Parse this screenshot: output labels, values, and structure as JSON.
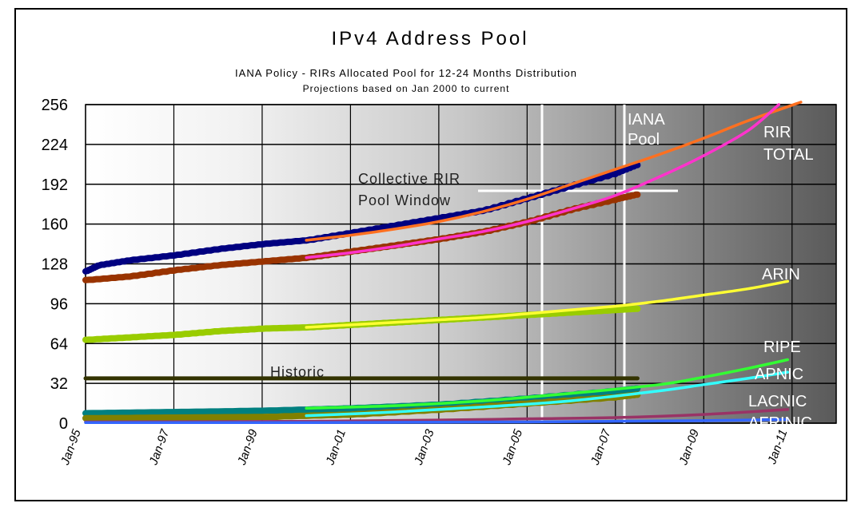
{
  "chart_data": {
    "type": "line",
    "title": "IPv4 Address Pool",
    "subtitle_line1": "IANA Policy - RIRs Allocated Pool for 12-24 Months Distribution",
    "subtitle_line2": "Projections based on Jan 2000 to current",
    "x_ticks": [
      "Jan-95",
      "Jan-97",
      "Jan-99",
      "Jan-01",
      "Jan-03",
      "Jan-05",
      "Jan-07",
      "Jan-09",
      "Jan-11"
    ],
    "y_ticks": [
      256,
      224,
      192,
      160,
      128,
      96,
      64,
      32,
      0
    ],
    "ylim": [
      0,
      256
    ],
    "xlim": [
      1995.0,
      2012.0
    ],
    "grid": true,
    "annotations": {
      "iana_pool": [
        "IANA",
        "Pool"
      ],
      "collective_window": [
        "Collective RIR",
        "Pool Window"
      ],
      "historic": "Historic"
    },
    "series": [
      {
        "name": "IANA Pool",
        "color": "#000080",
        "style": "actual",
        "points": [
          [
            1995.0,
            122
          ],
          [
            1995.3,
            127
          ],
          [
            1996.0,
            131
          ],
          [
            1997.0,
            135
          ],
          [
            1998.0,
            140
          ],
          [
            1999.0,
            144
          ],
          [
            2000.0,
            147
          ],
          [
            2001.0,
            153
          ],
          [
            2002.0,
            159
          ],
          [
            2003.0,
            165
          ],
          [
            2004.0,
            171
          ],
          [
            2005.0,
            181
          ],
          [
            2006.0,
            191
          ],
          [
            2007.0,
            201
          ],
          [
            2007.5,
            208
          ]
        ]
      },
      {
        "name": "IANA Pool",
        "color": "#ff7020",
        "style": "projection",
        "points": [
          [
            2000.0,
            147
          ],
          [
            2001.0,
            151
          ],
          [
            2002.0,
            156
          ],
          [
            2003.0,
            162
          ],
          [
            2004.0,
            170
          ],
          [
            2005.0,
            180
          ],
          [
            2006.0,
            192
          ],
          [
            2007.0,
            204
          ],
          [
            2008.0,
            216
          ],
          [
            2009.0,
            229
          ],
          [
            2010.0,
            243
          ],
          [
            2011.2,
            258
          ]
        ]
      },
      {
        "name": "RIR TOTAL",
        "color": "#993300",
        "style": "actual",
        "points": [
          [
            1995.0,
            115
          ],
          [
            1996.0,
            118
          ],
          [
            1997.0,
            123
          ],
          [
            1998.0,
            127
          ],
          [
            1999.0,
            130
          ],
          [
            2000.0,
            133
          ],
          [
            2001.0,
            138
          ],
          [
            2002.0,
            143
          ],
          [
            2003.0,
            148
          ],
          [
            2004.0,
            154
          ],
          [
            2005.0,
            162
          ],
          [
            2006.0,
            172
          ],
          [
            2007.0,
            180
          ],
          [
            2007.5,
            184
          ]
        ]
      },
      {
        "name": "RIR TOTAL",
        "color": "#ff33cc",
        "style": "projection",
        "points": [
          [
            2000.0,
            133
          ],
          [
            2001.0,
            137
          ],
          [
            2002.0,
            142
          ],
          [
            2003.0,
            148
          ],
          [
            2004.0,
            154
          ],
          [
            2005.0,
            162
          ],
          [
            2006.0,
            172
          ],
          [
            2007.0,
            183
          ],
          [
            2008.0,
            198
          ],
          [
            2009.0,
            215
          ],
          [
            2010.0,
            235
          ],
          [
            2010.7,
            256
          ]
        ]
      },
      {
        "name": "ARIN",
        "color": "#99cc00",
        "style": "actual",
        "points": [
          [
            1995.0,
            67
          ],
          [
            1996.0,
            69
          ],
          [
            1997.0,
            71
          ],
          [
            1998.0,
            74
          ],
          [
            1999.0,
            76
          ],
          [
            2000.0,
            77
          ],
          [
            2001.0,
            79
          ],
          [
            2002.0,
            81
          ],
          [
            2003.0,
            83
          ],
          [
            2004.0,
            85
          ],
          [
            2005.0,
            87
          ],
          [
            2006.0,
            89
          ],
          [
            2007.0,
            91
          ],
          [
            2007.5,
            92
          ]
        ]
      },
      {
        "name": "ARIN",
        "color": "#ffff33",
        "style": "projection",
        "points": [
          [
            2000.0,
            77
          ],
          [
            2001.0,
            79
          ],
          [
            2002.0,
            81
          ],
          [
            2003.0,
            83
          ],
          [
            2004.0,
            85
          ],
          [
            2005.0,
            88
          ],
          [
            2006.0,
            91
          ],
          [
            2007.0,
            94
          ],
          [
            2008.0,
            98
          ],
          [
            2009.0,
            103
          ],
          [
            2010.0,
            108
          ],
          [
            2010.9,
            114
          ]
        ]
      },
      {
        "name": "Historic",
        "color": "#333300",
        "style": "flat",
        "points": [
          [
            1995.0,
            36
          ],
          [
            2007.5,
            36
          ]
        ]
      },
      {
        "name": "RIPE",
        "color": "#008080",
        "style": "actual",
        "points": [
          [
            1995.0,
            8
          ],
          [
            1997.0,
            9
          ],
          [
            1999.0,
            10
          ],
          [
            2001.0,
            12
          ],
          [
            2003.0,
            15
          ],
          [
            2005.0,
            20
          ],
          [
            2007.0,
            26
          ],
          [
            2007.5,
            28
          ]
        ]
      },
      {
        "name": "RIPE",
        "color": "#33ff33",
        "style": "projection",
        "points": [
          [
            2000.0,
            12
          ],
          [
            2002.0,
            14
          ],
          [
            2004.0,
            18
          ],
          [
            2006.0,
            24
          ],
          [
            2008.0,
            31
          ],
          [
            2009.0,
            37
          ],
          [
            2010.0,
            44
          ],
          [
            2010.9,
            51
          ]
        ]
      },
      {
        "name": "APNIC",
        "color": "#808000",
        "style": "actual",
        "points": [
          [
            1995.0,
            4
          ],
          [
            1997.0,
            4.5
          ],
          [
            1999.0,
            5
          ],
          [
            2001.0,
            7
          ],
          [
            2003.0,
            11
          ],
          [
            2005.0,
            16
          ],
          [
            2007.0,
            21
          ],
          [
            2007.5,
            23
          ]
        ]
      },
      {
        "name": "APNIC",
        "color": "#33ffff",
        "style": "projection",
        "points": [
          [
            2000.0,
            6
          ],
          [
            2002.0,
            9
          ],
          [
            2004.0,
            13
          ],
          [
            2006.0,
            18
          ],
          [
            2008.0,
            26
          ],
          [
            2009.0,
            31
          ],
          [
            2010.0,
            36
          ],
          [
            2010.9,
            41
          ]
        ]
      },
      {
        "name": "LACNIC",
        "color": "#993366",
        "style": "projection",
        "points": [
          [
            1995.0,
            1
          ],
          [
            2000.0,
            1.5
          ],
          [
            2003.0,
            2.5
          ],
          [
            2005.0,
            3.5
          ],
          [
            2007.0,
            4.5
          ],
          [
            2009.0,
            7
          ],
          [
            2010.9,
            11
          ]
        ]
      },
      {
        "name": "AFRINIC",
        "color": "#3366ff",
        "style": "projection",
        "points": [
          [
            1995.0,
            0.5
          ],
          [
            2000.0,
            0.5
          ],
          [
            2005.0,
            1
          ],
          [
            2007.0,
            1.5
          ],
          [
            2009.0,
            2
          ],
          [
            2010.9,
            3
          ]
        ]
      }
    ],
    "series_labels": [
      "RIR",
      "TOTAL",
      "ARIN",
      "RIPE",
      "APNIC",
      "LACNIC",
      "AFRINIC"
    ]
  }
}
